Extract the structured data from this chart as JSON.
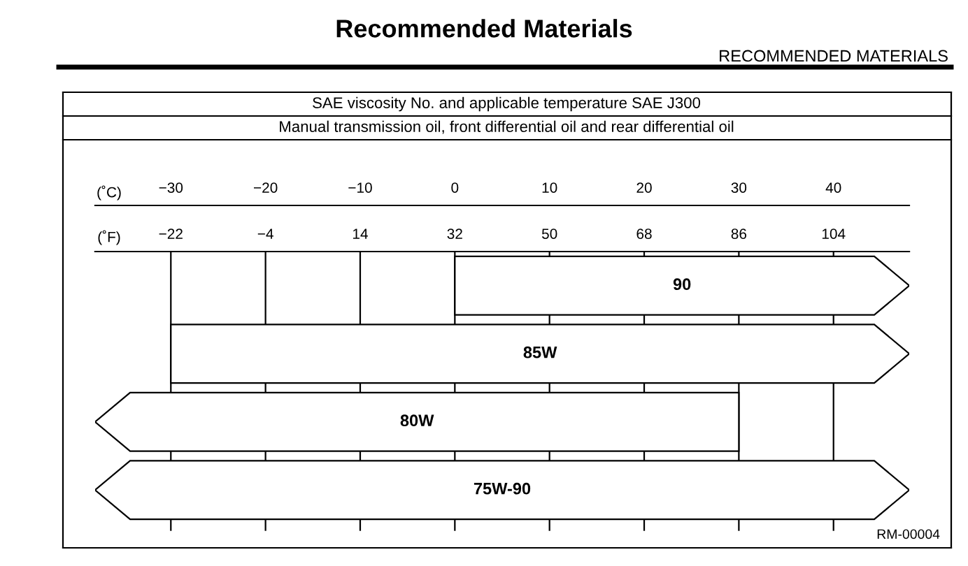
{
  "chart_data": {
    "type": "bar",
    "orientation": "horizontal",
    "title": "Recommended Materials",
    "subtitle": "RECOMMENDED MATERIALS",
    "categories": [
      "90",
      "85W",
      "80W",
      "75W-90"
    ],
    "base": [
      0,
      -30,
      -38,
      -38
    ],
    "values": [
      48,
      78,
      68,
      86
    ],
    "color": "#ffffff",
    "xlabel": "(˚C)",
    "x2label": "(˚F)",
    "xlim": [
      -38,
      48
    ],
    "xticks": [
      -30,
      -20,
      -10,
      0,
      10,
      20,
      30,
      40
    ],
    "x2lim": [
      -36.4,
      118.4
    ],
    "x2ticks": [
      -22,
      -4,
      14,
      32,
      50,
      68,
      86,
      104
    ],
    "grid": "x",
    "annotations": [
      "SAE viscosity No. and applicable temperature SAE J300",
      "Manual transmission oil, front differential oil and rear differential oil",
      "RM-00004"
    ]
  }
}
